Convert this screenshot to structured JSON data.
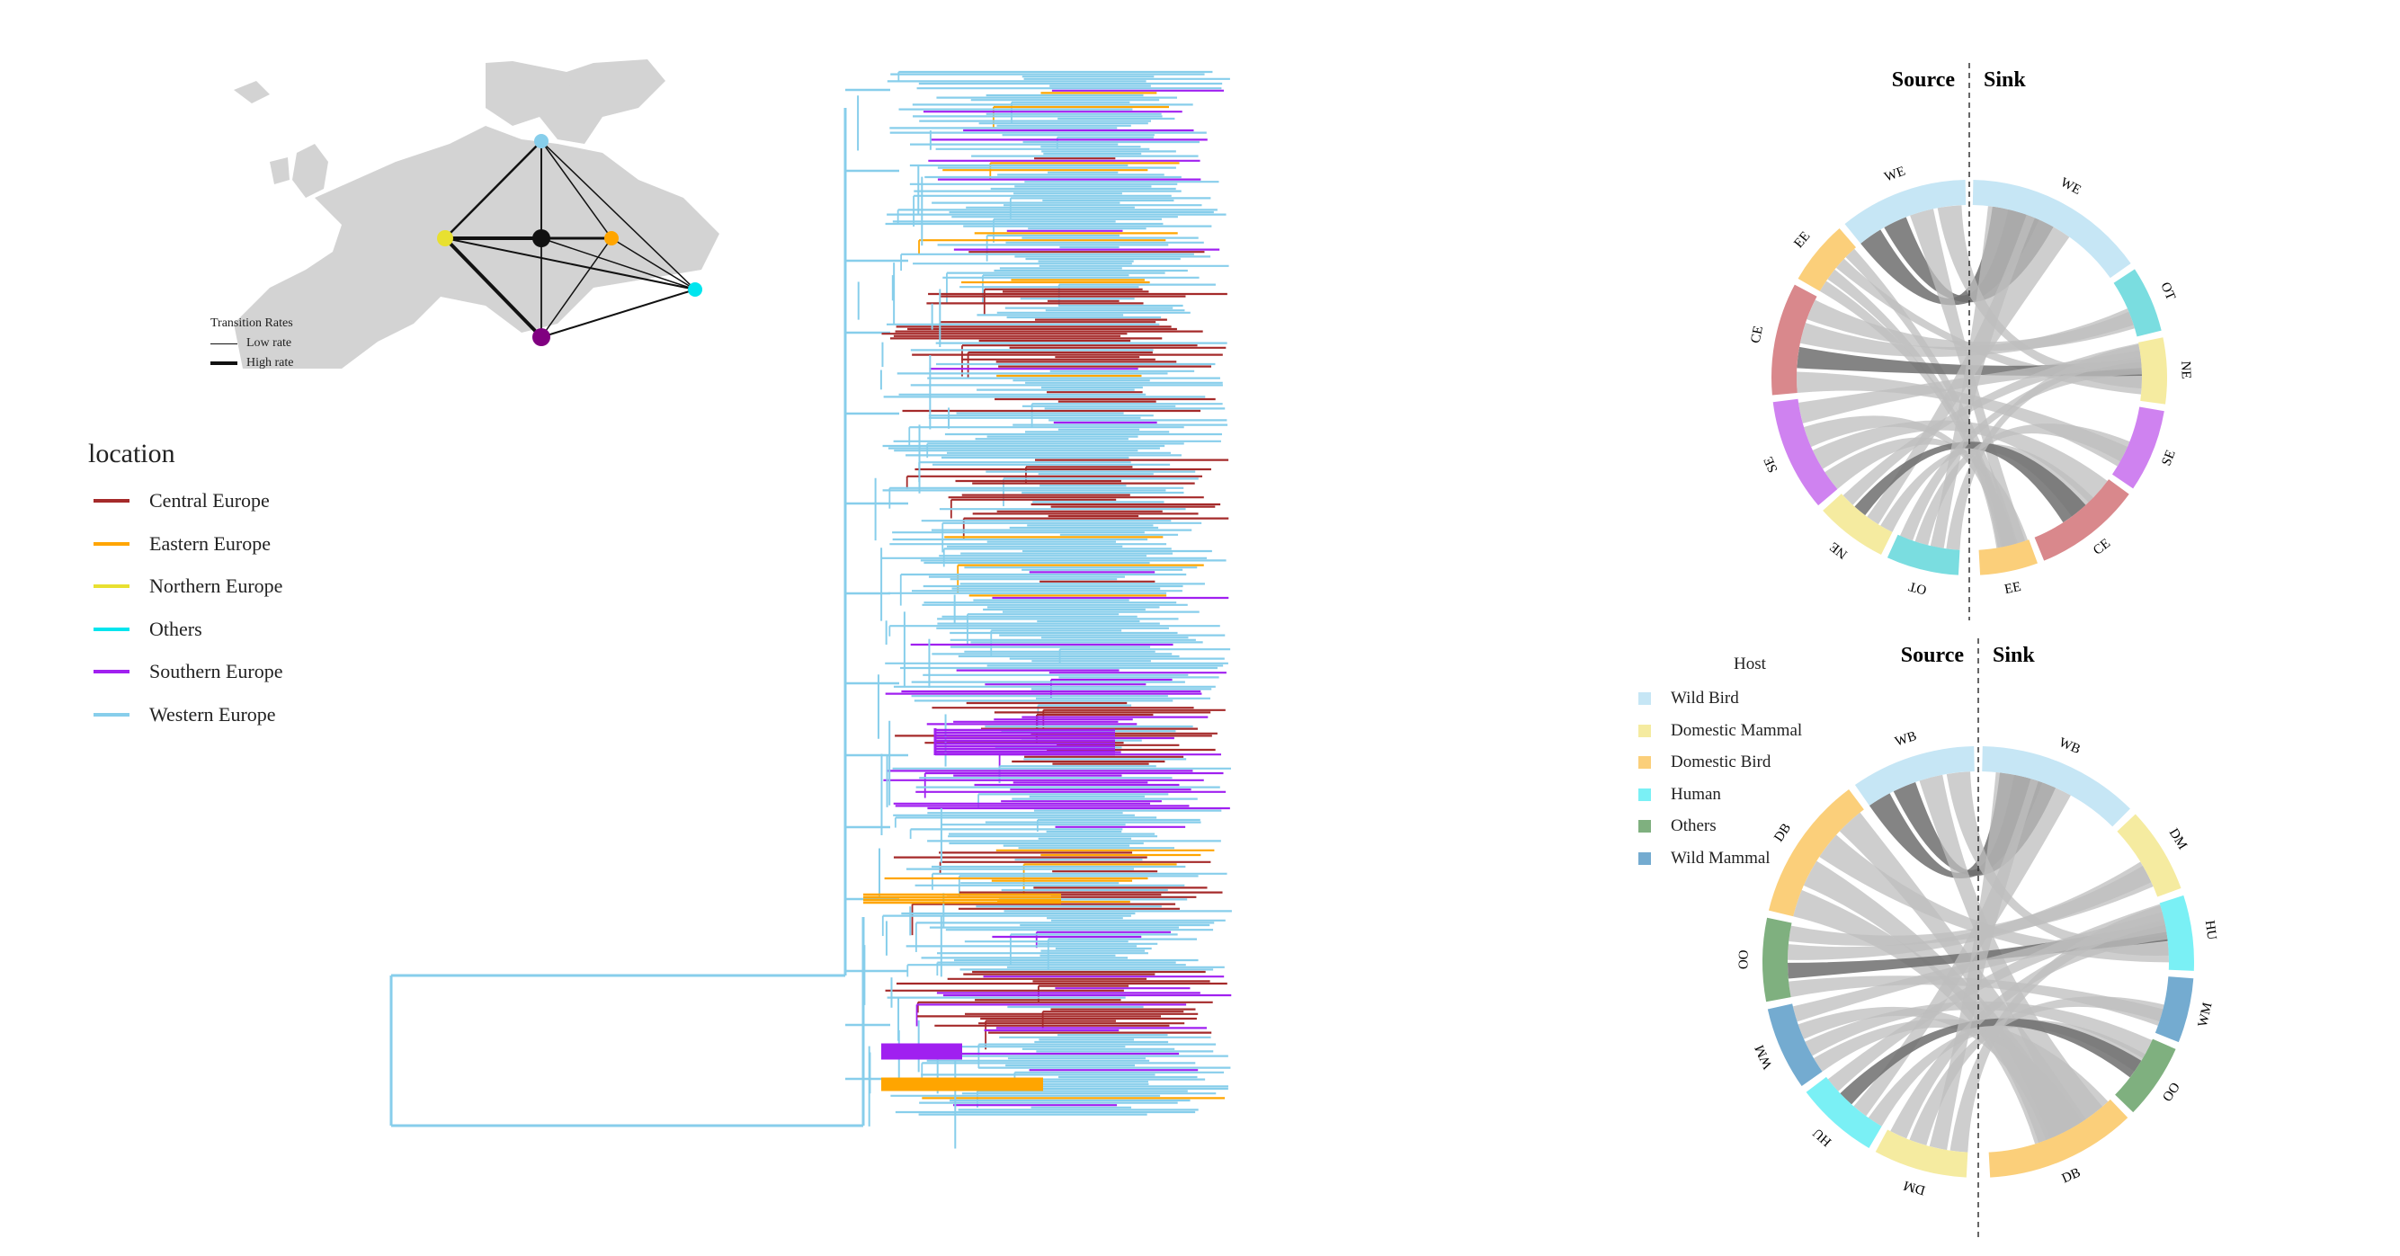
{
  "colors": {
    "central_europe": "#a52a2a",
    "eastern_europe": "#ffa500",
    "northern_europe": "#e8e030",
    "others": "#00e5ee",
    "southern_europe": "#a020f0",
    "western_europe": "#87ceeb",
    "map_land": "#d3d3d3"
  },
  "map": {
    "legend_title": "Transition Rates",
    "legend_low": "Low rate",
    "legend_high": "High rate"
  },
  "location_legend": {
    "title": "location",
    "items": [
      {
        "label": "Central Europe",
        "color": "#a52a2a"
      },
      {
        "label": "Eastern Europe",
        "color": "#ffa500"
      },
      {
        "label": "Northern Europe",
        "color": "#e8e030"
      },
      {
        "label": "Others",
        "color": "#00e5ee"
      },
      {
        "label": "Southern Europe",
        "color": "#a020f0"
      },
      {
        "label": "Western Europe",
        "color": "#87ceeb"
      }
    ]
  },
  "chord_location": {
    "source_label": "Source",
    "sink_label": "Sink",
    "source_segments": [
      "WE",
      "EE",
      "CE",
      "SE",
      "NE",
      "OT"
    ],
    "sink_segments": [
      "WE",
      "OT",
      "NE",
      "SE",
      "CE",
      "EE"
    ]
  },
  "chord_host": {
    "source_label": "Source",
    "sink_label": "Sink",
    "source_segments": [
      "WB",
      "DB",
      "OO",
      "WM",
      "HU",
      "DM"
    ],
    "sink_segments": [
      "WB",
      "DM",
      "HU",
      "WM",
      "OO",
      "DB"
    ]
  },
  "host_legend": {
    "title": "Host",
    "items": [
      {
        "label": "Wild Bird",
        "color": "#c6e6f5"
      },
      {
        "label": "Domestic Mammal",
        "color": "#f5eba0"
      },
      {
        "label": "Domestic Bird",
        "color": "#fbcf7a"
      },
      {
        "label": "Human",
        "color": "#7af0f5"
      },
      {
        "label": "Others",
        "color": "#7fb07f"
      },
      {
        "label": "Wild Mammal",
        "color": "#74abd0"
      }
    ]
  }
}
